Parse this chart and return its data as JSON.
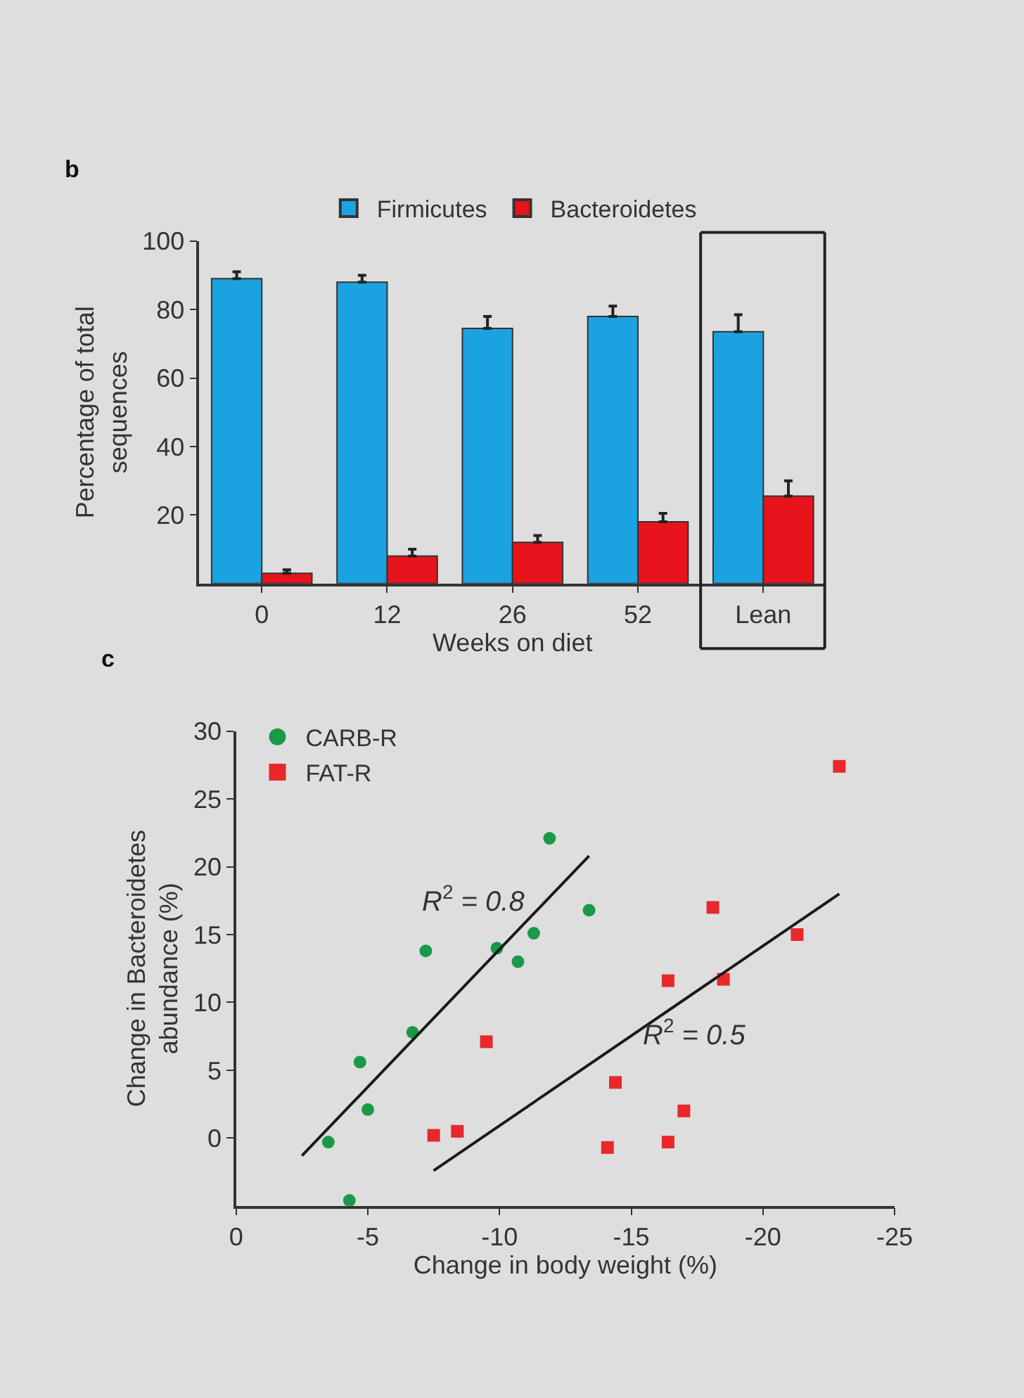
{
  "chart_data": [
    {
      "type": "bar",
      "title": "b",
      "xlabel": "Weeks on diet",
      "ylabel": "Percentage of total\nsequences",
      "categories": [
        "0",
        "12",
        "26",
        "52",
        "Lean"
      ],
      "series": [
        {
          "name": "Firmicutes",
          "color": "#1aa3e0",
          "values": [
            89,
            88,
            74.5,
            78,
            73.5
          ],
          "errors": [
            [
              89,
              91
            ],
            [
              88,
              90
            ],
            [
              74.5,
              78
            ],
            [
              78,
              81
            ],
            [
              73.5,
              78.5
            ]
          ]
        },
        {
          "name": "Bacteroidetes",
          "color": "#e8141c",
          "values": [
            3,
            8,
            12,
            18,
            25.5
          ],
          "errors": [
            [
              3,
              4
            ],
            [
              8,
              10
            ],
            [
              12,
              14
            ],
            [
              18,
              20.5
            ],
            [
              25.5,
              30
            ]
          ]
        }
      ],
      "ylim": [
        0,
        100
      ],
      "yticks": [
        20,
        40,
        60,
        80,
        100
      ],
      "grid": false,
      "legend": "top"
    },
    {
      "type": "scatter",
      "title": "c",
      "xlabel": "Change in body weight (%)",
      "ylabel": "Change in Bacteroidetes\nabundance (%)",
      "series": [
        {
          "name": "CARB-R",
          "color": "#1a9a48",
          "marker": "circle",
          "x": [
            -11.9,
            -13.4,
            -11.3,
            -9.9,
            -7.2,
            -10.7,
            -6.7,
            -4.7,
            -5.0,
            -3.5,
            -4.3
          ],
          "values": [
            22.1,
            16.8,
            15.1,
            14.0,
            13.8,
            13.0,
            7.8,
            5.6,
            2.1,
            -0.3,
            -4.6
          ]
        },
        {
          "name": "FAT-R",
          "color": "#e8282a",
          "marker": "square",
          "x": [
            -22.9,
            -18.1,
            -21.3,
            -16.4,
            -18.5,
            -9.5,
            -14.4,
            -17.0,
            -8.4,
            -7.5,
            -14.1,
            -16.4
          ],
          "values": [
            27.4,
            17.0,
            15.0,
            11.6,
            11.7,
            7.1,
            4.1,
            2.0,
            0.5,
            0.2,
            -0.7,
            -0.3
          ]
        },
        {
          "type": "line",
          "color": "#1a1a1a",
          "x": [
            -2.5,
            -13.4
          ],
          "values": [
            -1.3,
            20.8
          ]
        },
        {
          "type": "line",
          "color": "#1a1a1a",
          "x": [
            -7.5,
            -22.9
          ],
          "values": [
            -2.4,
            18.0
          ]
        }
      ],
      "annotations": [
        "R$^{2}$ = 0.8",
        "R$^{2}$ = 0.5"
      ],
      "xlim": [
        0,
        -25
      ],
      "xticks": [
        0,
        -5,
        -10,
        -15,
        -20,
        -25
      ],
      "ylim": [
        -5,
        30
      ],
      "yticks": [
        0,
        5,
        10,
        15,
        20,
        25,
        30
      ],
      "grid": false,
      "legend": "top left"
    }
  ]
}
